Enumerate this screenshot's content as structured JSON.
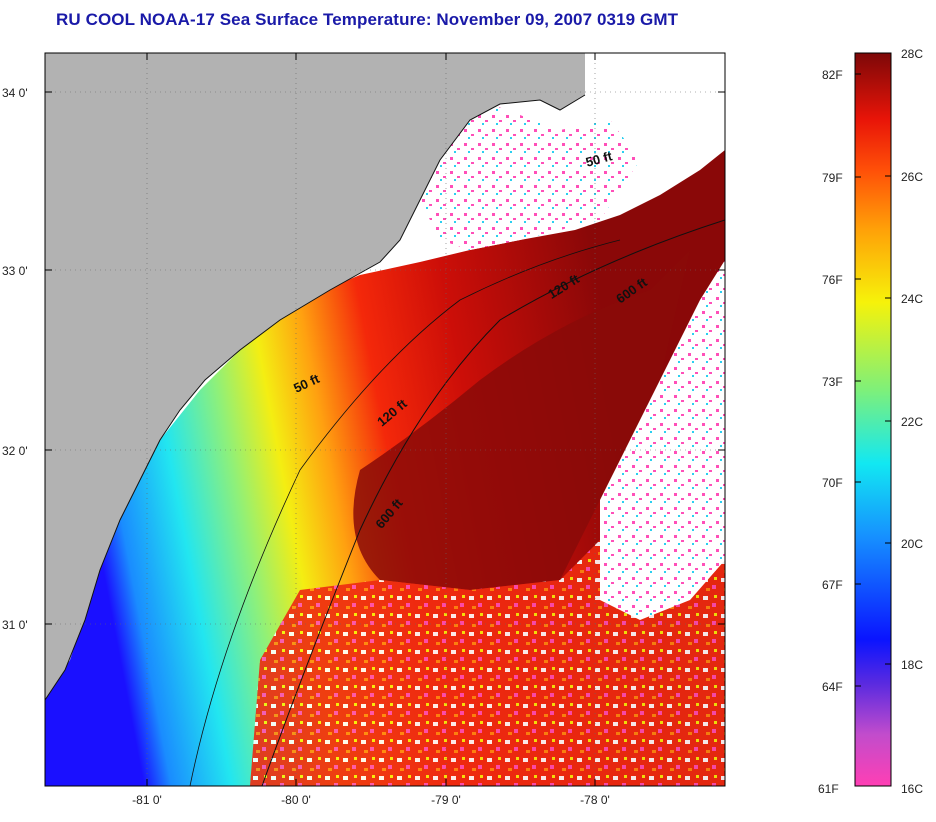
{
  "title": "RU COOL  NOAA-17  Sea Surface Temperature:  November 09, 2007 0319 GMT",
  "lat_labels": [
    "34 0'",
    "33 0'",
    "32 0'",
    "31 0'"
  ],
  "lon_labels": [
    "-81 0'",
    "-80 0'",
    "-79 0'",
    "-78 0'"
  ],
  "isobath_labels": [
    {
      "text": "50 ft",
      "id": "isobath-50-north"
    },
    {
      "text": "120 ft",
      "id": "isobath-120-north"
    },
    {
      "text": "600 ft",
      "id": "isobath-600-north"
    },
    {
      "text": "50 ft",
      "id": "isobath-50-south"
    },
    {
      "text": "120 ft",
      "id": "isobath-120-south"
    },
    {
      "text": "600 ft",
      "id": "isobath-600-south"
    }
  ],
  "colorbar": {
    "fahrenheit_labels": [
      "82F",
      "79F",
      "76F",
      "73F",
      "70F",
      "67F",
      "64F",
      "61F"
    ],
    "celsius_labels": [
      "28C",
      "26C",
      "24C",
      "22C",
      "20C",
      "18C",
      "16C"
    ],
    "colors": {
      "c16": "#ff3fb4",
      "c17": "#9a2fd4",
      "c18": "#0a14ff",
      "c20": "#12e8f2",
      "c22": "#7ef07a",
      "c24": "#f6f20a",
      "c26": "#ff6a08",
      "c27": "#f21c08",
      "c28": "#7d0808"
    }
  },
  "land_color": "#b2b2b2"
}
